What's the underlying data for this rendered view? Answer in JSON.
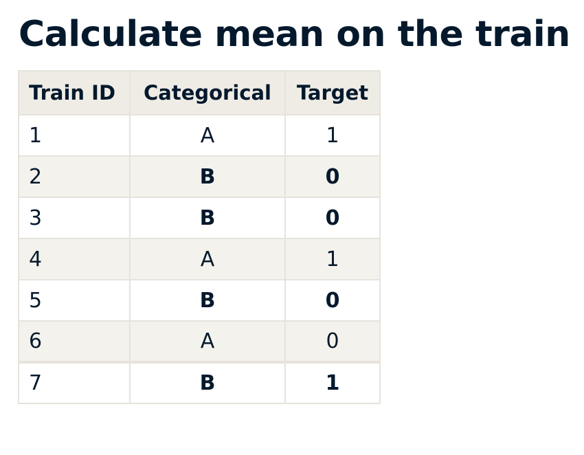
{
  "title": "Calculate mean on the train",
  "table": {
    "headers": [
      "Train ID",
      "Categorical",
      "Target"
    ],
    "rows": [
      {
        "id": "1",
        "categorical": "A",
        "target": "1",
        "cat_bold": false,
        "target_bold": false
      },
      {
        "id": "2",
        "categorical": "B",
        "target": "0",
        "cat_bold": true,
        "target_bold": true
      },
      {
        "id": "3",
        "categorical": "B",
        "target": "0",
        "cat_bold": true,
        "target_bold": true
      },
      {
        "id": "4",
        "categorical": "A",
        "target": "1",
        "cat_bold": false,
        "target_bold": false
      },
      {
        "id": "5",
        "categorical": "B",
        "target": "0",
        "cat_bold": true,
        "target_bold": true
      },
      {
        "id": "6",
        "categorical": "A",
        "target": "0",
        "cat_bold": false,
        "target_bold": false
      },
      {
        "id": "7",
        "categorical": "B",
        "target": "1",
        "cat_bold": true,
        "target_bold": true
      }
    ]
  },
  "colors": {
    "text": "#05192d",
    "header_background": "#efece6",
    "stripe_background": "#f4f2ec",
    "border": "#e6e3dc"
  }
}
